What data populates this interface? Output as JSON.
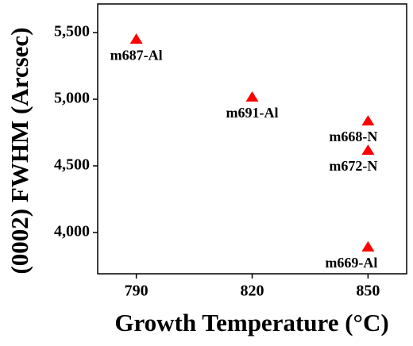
{
  "chart_data": {
    "type": "scatter",
    "x_label": "Growth Temperature (°C)",
    "y_label": "(0002) FWHM (Arcsec)",
    "series": [
      {
        "color": "#ff0000",
        "x": [
          790,
          820,
          850,
          850,
          850
        ],
        "values": [
          5452,
          5018,
          4839,
          4619,
          3893
        ],
        "labels": [
          "m687-Al",
          "m691-Al",
          "m668-N",
          "m672-N",
          "m669-Al"
        ]
      }
    ],
    "xlim": [
      780,
      860
    ],
    "xticks": [
      790,
      820,
      850
    ],
    "ylim": [
      3690,
      5715
    ],
    "yticks": [
      {
        "value": 4000,
        "label": "4,000"
      },
      {
        "value": 4500,
        "label": "4,500"
      },
      {
        "value": 5000,
        "label": "5,000"
      },
      {
        "value": 5500,
        "label": "5,500"
      }
    ],
    "grid": false
  }
}
